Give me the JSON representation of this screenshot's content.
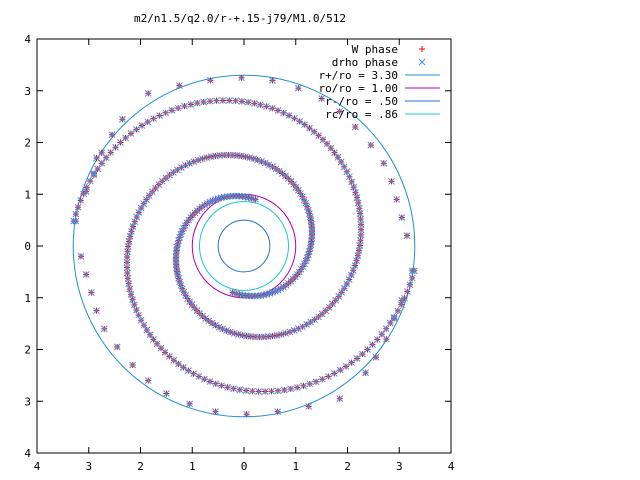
{
  "chart_data": {
    "type": "scatter",
    "title": "m2/n1.5/q2.0/r-+.15-j79/M1.0/512",
    "xlabel": "",
    "ylabel": "",
    "xlim": [
      -4,
      4
    ],
    "ylim": [
      -4,
      4
    ],
    "x_tick_labels": [
      "4",
      "3",
      "2",
      "1",
      "0",
      "1",
      "2",
      "3",
      "4"
    ],
    "y_tick_labels": [
      "4",
      "3",
      "2",
      "1",
      "0",
      "1",
      "2",
      "3",
      "4"
    ],
    "grid": false,
    "legend_position": "top-right",
    "legend": [
      {
        "label": "W phase",
        "marker": "+",
        "color": "#ff0000"
      },
      {
        "label": "drho phase",
        "marker": "x",
        "color": "#3c8ee6"
      },
      {
        "label": "r+/ro = 3.30",
        "line": true,
        "color": "#1f8fd8"
      },
      {
        "label": "ro/ro = 1.00",
        "line": true,
        "color": "#b000b0"
      },
      {
        "label": "r-/ro = .50",
        "line": true,
        "color": "#1f6fd0"
      },
      {
        "label": "rc/ro = .86",
        "line": true,
        "color": "#20c8c8"
      }
    ],
    "circles": [
      {
        "name": "r+/ro = 3.30",
        "radius": 3.3,
        "color": "#1f8fd8"
      },
      {
        "name": "ro/ro = 1.00",
        "radius": 1.0,
        "color": "#b000b0"
      },
      {
        "name": "r-/ro = .50",
        "radius": 0.5,
        "color": "#1f6fd0"
      },
      {
        "name": "rc/ro = .86",
        "radius": 0.86,
        "color": "#20c8c8"
      }
    ],
    "series": [
      {
        "name": "W phase",
        "marker": "+",
        "color": "#ff0000",
        "arms": [
          {
            "start": [
              0.22,
              0.9
            ],
            "end": [
              -3.29,
              0.48
            ]
          },
          {
            "start": [
              -0.22,
              -0.9
            ],
            "end": [
              3.29,
              -0.48
            ]
          }
        ],
        "outer_sparse": [
          [
            -3.25,
            0.48
          ],
          [
            -3.05,
            1.05
          ],
          [
            -2.9,
            1.4
          ],
          [
            -2.85,
            1.7
          ],
          [
            -2.75,
            1.8
          ],
          [
            -2.55,
            2.15
          ],
          [
            -2.35,
            2.45
          ],
          [
            -1.85,
            2.95
          ],
          [
            -1.25,
            3.1
          ],
          [
            -0.65,
            3.2
          ],
          [
            -0.05,
            3.25
          ],
          [
            0.55,
            3.2
          ],
          [
            1.05,
            3.05
          ],
          [
            1.5,
            2.85
          ],
          [
            1.85,
            2.6
          ],
          [
            2.15,
            2.3
          ],
          [
            2.45,
            1.95
          ],
          [
            2.7,
            1.6
          ],
          [
            2.85,
            1.25
          ],
          [
            2.95,
            0.9
          ],
          [
            3.05,
            0.55
          ],
          [
            3.15,
            0.2
          ],
          [
            3.25,
            -0.48
          ],
          [
            3.05,
            -1.05
          ],
          [
            2.9,
            -1.4
          ],
          [
            2.75,
            -1.8
          ],
          [
            2.55,
            -2.15
          ],
          [
            2.35,
            -2.45
          ],
          [
            1.85,
            -2.95
          ],
          [
            1.25,
            -3.1
          ],
          [
            0.65,
            -3.2
          ],
          [
            0.05,
            -3.25
          ],
          [
            -0.55,
            -3.2
          ],
          [
            -1.05,
            -3.05
          ],
          [
            -1.5,
            -2.85
          ],
          [
            -1.85,
            -2.6
          ],
          [
            -2.15,
            -2.3
          ],
          [
            -2.45,
            -1.95
          ],
          [
            -2.7,
            -1.6
          ],
          [
            -2.85,
            -1.25
          ],
          [
            -2.95,
            -0.9
          ],
          [
            -3.05,
            -0.55
          ],
          [
            -3.15,
            -0.2
          ]
        ]
      },
      {
        "name": "drho phase",
        "marker": "x",
        "color": "#3c8ee6",
        "arms": [
          {
            "start": [
              0.22,
              0.9
            ],
            "end": [
              -3.29,
              0.48
            ]
          },
          {
            "start": [
              -0.22,
              -0.9
            ],
            "end": [
              3.29,
              -0.48
            ]
          }
        ],
        "outer_sparse": [
          [
            -3.25,
            0.48
          ],
          [
            -3.05,
            1.05
          ],
          [
            -2.9,
            1.4
          ],
          [
            -2.85,
            1.7
          ],
          [
            -2.75,
            1.8
          ],
          [
            -2.55,
            2.15
          ],
          [
            -2.35,
            2.45
          ],
          [
            -1.85,
            2.95
          ],
          [
            -1.25,
            3.1
          ],
          [
            -0.65,
            3.2
          ],
          [
            -0.05,
            3.25
          ],
          [
            0.55,
            3.2
          ],
          [
            1.05,
            3.05
          ],
          [
            1.5,
            2.85
          ],
          [
            1.85,
            2.6
          ],
          [
            2.15,
            2.3
          ],
          [
            2.45,
            1.95
          ],
          [
            2.7,
            1.6
          ],
          [
            2.85,
            1.25
          ],
          [
            2.95,
            0.9
          ],
          [
            3.05,
            0.55
          ],
          [
            3.15,
            0.2
          ],
          [
            3.25,
            -0.48
          ],
          [
            3.05,
            -1.05
          ],
          [
            2.9,
            -1.4
          ],
          [
            2.75,
            -1.8
          ],
          [
            2.55,
            -2.15
          ],
          [
            2.35,
            -2.45
          ],
          [
            1.85,
            -2.95
          ],
          [
            1.25,
            -3.1
          ],
          [
            0.65,
            -3.2
          ],
          [
            0.05,
            -3.25
          ],
          [
            -0.55,
            -3.2
          ],
          [
            -1.05,
            -3.05
          ],
          [
            -1.5,
            -2.85
          ],
          [
            -1.85,
            -2.6
          ],
          [
            -2.15,
            -2.3
          ],
          [
            -2.45,
            -1.95
          ],
          [
            -2.7,
            -1.6
          ],
          [
            -2.85,
            -1.25
          ],
          [
            -2.95,
            -0.9
          ],
          [
            -3.05,
            -0.55
          ],
          [
            -3.15,
            -0.2
          ]
        ]
      }
    ]
  }
}
